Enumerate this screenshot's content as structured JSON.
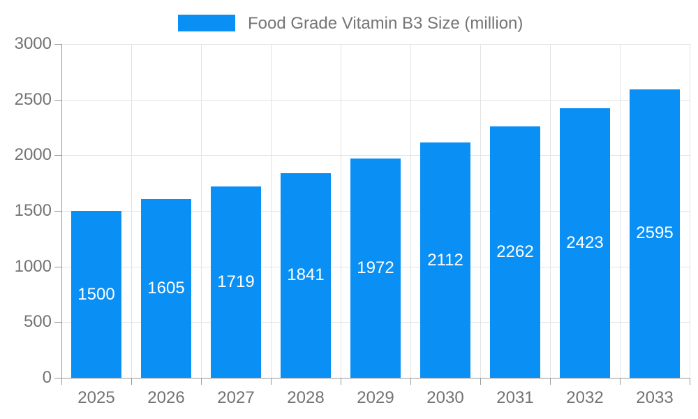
{
  "chart_data": {
    "type": "bar",
    "title": "",
    "legend": {
      "label": "Food Grade Vitamin B3 Size (million)",
      "position": "top-center"
    },
    "categories": [
      "2025",
      "2026",
      "2027",
      "2028",
      "2029",
      "2030",
      "2031",
      "2032",
      "2033"
    ],
    "series": [
      {
        "name": "Food Grade Vitamin B3 Size (million)",
        "values": [
          1500,
          1605,
          1719,
          1841,
          1972,
          2112,
          2262,
          2423,
          2595
        ]
      }
    ],
    "value_labels_position": "inside-center",
    "xlabel": "",
    "ylabel": "",
    "ylim": [
      0,
      3000
    ],
    "ytick_step": 500,
    "yticks": [
      0,
      500,
      1000,
      1500,
      2000,
      2500,
      3000
    ],
    "grid": true,
    "legend_visible": true,
    "colors": {
      "bar": "#0a90f5",
      "axis_line": "#999999",
      "grid_line": "#e3e3e3",
      "axis_label": "#737373",
      "legend_text": "#757575",
      "value_label": "#ffffff"
    }
  }
}
